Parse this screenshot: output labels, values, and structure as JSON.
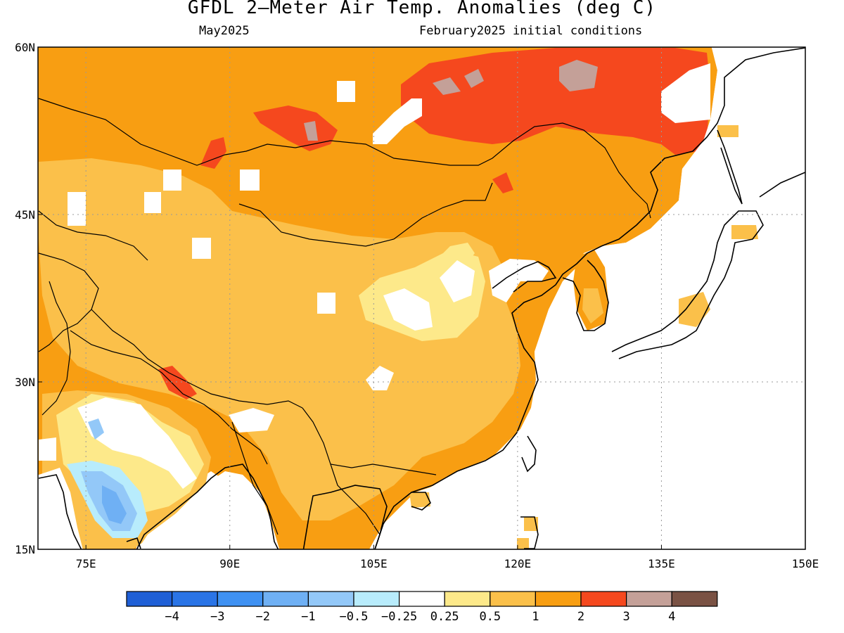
{
  "title": "GFDL 2—Meter Air Temp. Anomalies (deg C)",
  "subtitle_left": "May2025",
  "subtitle_right": "February2025 initial conditions",
  "map": {
    "lon_range": [
      70,
      150
    ],
    "lat_range": [
      15,
      60
    ],
    "lon_ticks": [
      {
        "value": 75,
        "label": "75E"
      },
      {
        "value": 90,
        "label": "90E"
      },
      {
        "value": 105,
        "label": "105E"
      },
      {
        "value": 120,
        "label": "120E"
      },
      {
        "value": 135,
        "label": "135E"
      },
      {
        "value": 150,
        "label": "150E"
      }
    ],
    "lat_ticks": [
      {
        "value": 15,
        "label": "15N"
      },
      {
        "value": 30,
        "label": "30N"
      },
      {
        "value": 45,
        "label": "45N"
      },
      {
        "value": 60,
        "label": "60N"
      }
    ],
    "grid": true
  },
  "colorbar": {
    "colors": [
      "#1f5fd6",
      "#2a74e6",
      "#3f91f2",
      "#6fb0f4",
      "#93c8f8",
      "#b8ecfc",
      "#ffffff",
      "#fde98a",
      "#fbc04a",
      "#f89e12",
      "#f5481e",
      "#c4a098",
      "#7a5244"
    ],
    "labels": [
      "−4",
      "−3",
      "−2",
      "−1",
      "−0.5",
      "−0.25",
      "0.25",
      "0.5",
      "1",
      "2",
      "3",
      "4"
    ]
  },
  "colors": {
    "ocean": "#ffffff",
    "anom_025": "#fde98a",
    "anom_05": "#fbc04a",
    "anom_1": "#f89e12",
    "anom_2": "#f5481e",
    "anom_3": "#c4a098",
    "cool_025": "#b8ecfc",
    "cool_05": "#93c8f8",
    "cool_1": "#6fb0f4"
  }
}
